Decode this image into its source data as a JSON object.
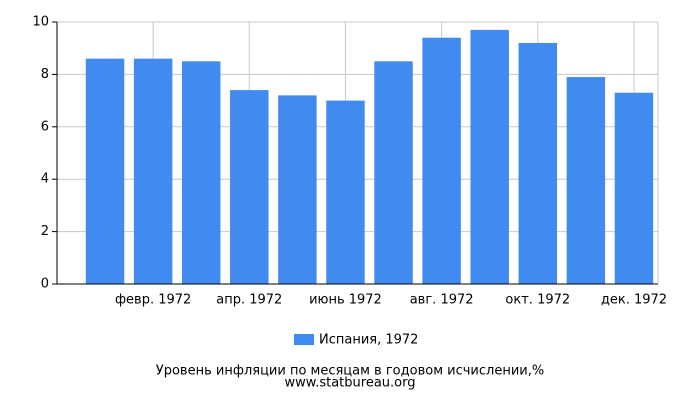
{
  "chart_data": {
    "type": "bar",
    "title": "Уровень инфляции по месяцам в годовом исчислении,%",
    "subtitle": "www.statbureau.org",
    "categories": [
      null,
      "февр. 1972",
      null,
      "апр. 1972",
      null,
      "июнь 1972",
      null,
      "авг. 1972",
      null,
      "окт. 1972",
      null,
      "дек. 1972"
    ],
    "series": [
      {
        "name": "Испания, 1972",
        "color": "#418bf0",
        "values": [
          8.6,
          8.6,
          8.5,
          7.4,
          7.2,
          7.0,
          8.5,
          9.4,
          9.7,
          9.2,
          7.9,
          7.3
        ]
      }
    ],
    "ylim": [
      0,
      10
    ],
    "yticks": [
      0,
      2,
      4,
      6,
      8,
      10
    ],
    "grid": true,
    "legend": "bottom"
  }
}
